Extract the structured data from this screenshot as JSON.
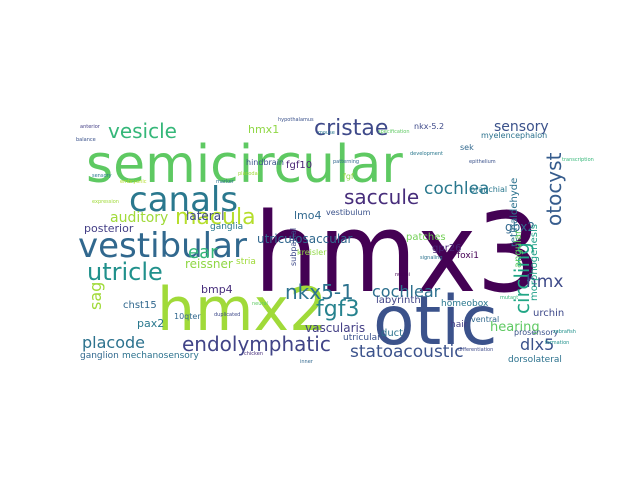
{
  "words": [
    {
      "text": "hmx3",
      "color": "#440154"
    },
    {
      "text": "semicircular",
      "color": "#5ec962"
    },
    {
      "text": "otic",
      "color": "#3b528b"
    },
    {
      "text": "hmx2",
      "color": "#a0da39"
    },
    {
      "text": "vestibular",
      "color": "#31688e"
    },
    {
      "text": "canals",
      "color": "#2a788e"
    },
    {
      "text": "cristae",
      "color": "#3e4989"
    },
    {
      "text": "utricle",
      "color": "#21918c"
    },
    {
      "text": "endolymphatic",
      "color": "#414487"
    },
    {
      "text": "macula",
      "color": "#b5de2b"
    },
    {
      "text": "vesicle",
      "color": "#35b779"
    },
    {
      "text": "saccule",
      "color": "#472d7b"
    },
    {
      "text": "nkx5-1",
      "color": "#2c728e"
    },
    {
      "text": "circling",
      "color": "#21a685"
    },
    {
      "text": "statoacoustic",
      "color": "#3b528b"
    },
    {
      "text": "auditory",
      "color": "#a0da39"
    },
    {
      "text": "cochlea",
      "color": "#2a788e"
    },
    {
      "text": "otocyst",
      "color": "#365c8d"
    },
    {
      "text": "fgf3",
      "color": "#26828e"
    },
    {
      "text": "placode",
      "color": "#2c728e"
    },
    {
      "text": "cochlear",
      "color": "#2d708e"
    },
    {
      "text": "sensory",
      "color": "#3b528b"
    },
    {
      "text": "hmx",
      "color": "#3e4a89"
    },
    {
      "text": "dlx5",
      "color": "#3b528b"
    },
    {
      "text": "ear",
      "color": "#35b779"
    },
    {
      "text": "sag",
      "color": "#a0da39"
    },
    {
      "text": "hearing",
      "color": "#5ec962"
    },
    {
      "text": "lateral",
      "color": "#3e4989"
    },
    {
      "text": "utriculosaccular",
      "color": "#31688e"
    },
    {
      "text": "vascularis",
      "color": "#433e85"
    },
    {
      "text": "reissner",
      "color": "#8fd744"
    },
    {
      "text": "pax2",
      "color": "#2a788e"
    },
    {
      "text": "gbx2",
      "color": "#31688e"
    },
    {
      "text": "bmp4",
      "color": "#472d7b"
    },
    {
      "text": "hmx1",
      "color": "#8fd744"
    },
    {
      "text": "lmo4",
      "color": "#31688e"
    },
    {
      "text": "labyrinth",
      "color": "#414487"
    },
    {
      "text": "posterior",
      "color": "#433e85"
    },
    {
      "text": "fgf10",
      "color": "#482475"
    },
    {
      "text": "chst15",
      "color": "#31688e"
    },
    {
      "text": "urchin",
      "color": "#3e4989"
    },
    {
      "text": "morphogenesis",
      "color": "#1fa088"
    },
    {
      "text": "ganglion",
      "color": "#31688e"
    },
    {
      "text": "mechanosensory",
      "color": "#2c728e"
    },
    {
      "text": "patches",
      "color": "#73d056"
    },
    {
      "text": "retinaldehyde",
      "color": "#2c728e"
    },
    {
      "text": "stria",
      "color": "#a0da39"
    },
    {
      "text": "ganglia",
      "color": "#2a788e"
    },
    {
      "text": "gpr26",
      "color": "#482475"
    },
    {
      "text": "foxi1",
      "color": "#440154"
    },
    {
      "text": "homeobox",
      "color": "#2a788e"
    },
    {
      "text": "angular",
      "color": "#5ec962"
    },
    {
      "text": "duct",
      "color": "#2c728e"
    },
    {
      "text": "hair",
      "color": "#433e85"
    },
    {
      "text": "dorsolateral",
      "color": "#2c728e"
    },
    {
      "text": "utricular",
      "color": "#3b528b"
    },
    {
      "text": "vestibulum",
      "color": "#3b528b"
    },
    {
      "text": "myelencephalon",
      "color": "#2c728e"
    },
    {
      "text": "kreisler",
      "color": "#8fd744"
    },
    {
      "text": "hindbrain",
      "color": "#3b528b"
    },
    {
      "text": "branchial",
      "color": "#2a788e"
    },
    {
      "text": "ventral",
      "color": "#31688e"
    },
    {
      "text": "subpallial",
      "color": "#3e4a89"
    },
    {
      "text": "nkx-5.2",
      "color": "#3e4989"
    },
    {
      "text": "sek",
      "color": "#31688e"
    },
    {
      "text": "prosensory",
      "color": "#3b528b"
    },
    {
      "text": "10qter",
      "color": "#31688e"
    },
    {
      "text": "fgf",
      "color": "#8fd744"
    },
    {
      "text": "embryonic",
      "color": "#b5de2b"
    },
    {
      "text": "nuclei",
      "color": "#440154"
    },
    {
      "text": "sensory",
      "color": "#2a788e"
    },
    {
      "text": "marker",
      "color": "#2c728e"
    },
    {
      "text": "epithelium",
      "color": "#3b528b"
    },
    {
      "text": "transcription",
      "color": "#35b779"
    },
    {
      "text": "differentiation",
      "color": "#3e4a89"
    },
    {
      "text": "formation",
      "color": "#21918c"
    },
    {
      "text": "hypothalamus",
      "color": "#3b528b"
    },
    {
      "text": "specification",
      "color": "#5ec962"
    },
    {
      "text": "expression",
      "color": "#a0da39"
    },
    {
      "text": "patterning",
      "color": "#31688e"
    },
    {
      "text": "development",
      "color": "#2a788e"
    },
    {
      "text": "duplicated",
      "color": "#3e4989"
    },
    {
      "text": "anterior",
      "color": "#433e85"
    },
    {
      "text": "neural",
      "color": "#5ec962"
    },
    {
      "text": "signaling",
      "color": "#2c728e"
    },
    {
      "text": "mutant",
      "color": "#35b779"
    },
    {
      "text": "balance",
      "color": "#3b528b"
    },
    {
      "text": "zebrafish",
      "color": "#21918c"
    },
    {
      "text": "chicken",
      "color": "#472d7b"
    },
    {
      "text": "mouse",
      "color": "#2a788e"
    },
    {
      "text": "placodal",
      "color": "#a0da39"
    },
    {
      "text": "inner",
      "color": "#31688e"
    }
  ]
}
